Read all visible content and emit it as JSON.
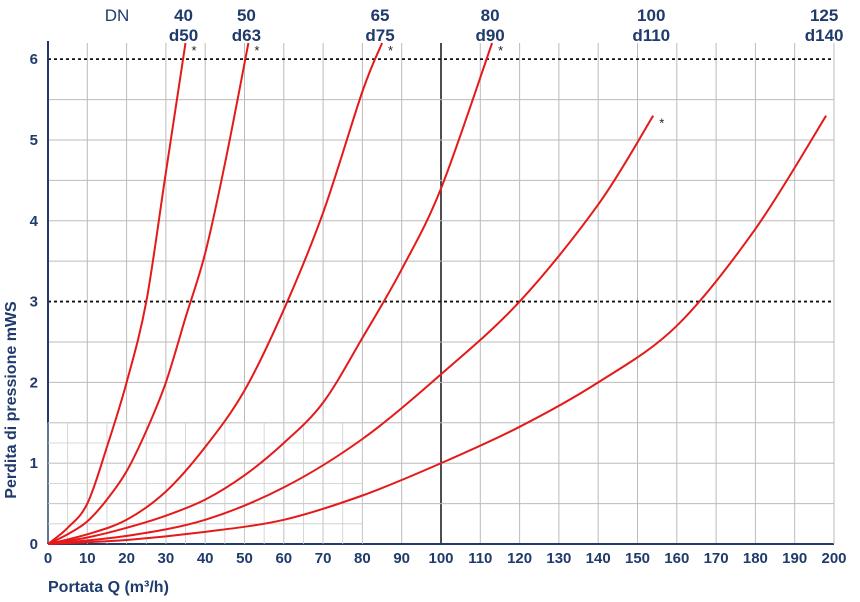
{
  "chart_data": {
    "type": "line",
    "xlabel": "Portata Q (m³/h)",
    "ylabel": "Perdita di pressione  mWS",
    "dn_label": "DN",
    "xlim": [
      0,
      200
    ],
    "ylim": [
      0,
      6.2
    ],
    "x_ticks": [
      0,
      10,
      20,
      30,
      40,
      50,
      60,
      70,
      80,
      90,
      100,
      110,
      120,
      130,
      140,
      150,
      160,
      170,
      180,
      190,
      200
    ],
    "y_ticks": [
      0,
      1,
      2,
      3,
      4,
      5,
      6
    ],
    "dashed_reference_lines": [
      3,
      6
    ],
    "grid": true,
    "colors": {
      "curve": "#e41a1a",
      "text": "#1f3a6b",
      "grid": "#bbbbbb",
      "major_grid": "#222222"
    },
    "series": [
      {
        "name": "40 d50",
        "dn": "40",
        "d": "d50",
        "x": [
          0,
          5,
          10,
          15,
          20,
          25,
          30,
          35
        ],
        "y": [
          0,
          0.2,
          0.5,
          1.2,
          2.0,
          3.0,
          4.6,
          6.2
        ],
        "star": true
      },
      {
        "name": "50 d63",
        "dn": "50",
        "d": "d63",
        "x": [
          0,
          5,
          10,
          15,
          20,
          25,
          30,
          35,
          40,
          45,
          51
        ],
        "y": [
          0,
          0.12,
          0.28,
          0.55,
          0.9,
          1.4,
          2.0,
          2.8,
          3.6,
          4.7,
          6.2
        ],
        "star": true
      },
      {
        "name": "65 d75",
        "dn": "65",
        "d": "d75",
        "x": [
          0,
          10,
          20,
          30,
          40,
          50,
          60,
          70,
          80,
          85
        ],
        "y": [
          0,
          0.12,
          0.3,
          0.65,
          1.2,
          1.9,
          2.9,
          4.1,
          5.6,
          6.2
        ],
        "star": true
      },
      {
        "name": "80 d90",
        "dn": "80",
        "d": "d90",
        "x": [
          0,
          10,
          20,
          30,
          40,
          50,
          60,
          70,
          80,
          90,
          100,
          113
        ],
        "y": [
          0,
          0.08,
          0.2,
          0.35,
          0.55,
          0.85,
          1.25,
          1.75,
          2.55,
          3.4,
          4.4,
          6.2
        ],
        "star": true
      },
      {
        "name": "100 d110",
        "dn": "100",
        "d": "d110",
        "x": [
          0,
          20,
          40,
          60,
          80,
          100,
          120,
          140,
          154
        ],
        "y": [
          0,
          0.1,
          0.3,
          0.7,
          1.3,
          2.1,
          3.0,
          4.2,
          5.3
        ],
        "star": true
      },
      {
        "name": "125 d140",
        "dn": "125",
        "d": "d140",
        "x": [
          0,
          20,
          40,
          60,
          80,
          100,
          120,
          140,
          160,
          180,
          198
        ],
        "y": [
          0,
          0.05,
          0.15,
          0.3,
          0.6,
          1.0,
          1.45,
          2.0,
          2.7,
          3.9,
          5.3
        ],
        "star": false
      }
    ]
  }
}
